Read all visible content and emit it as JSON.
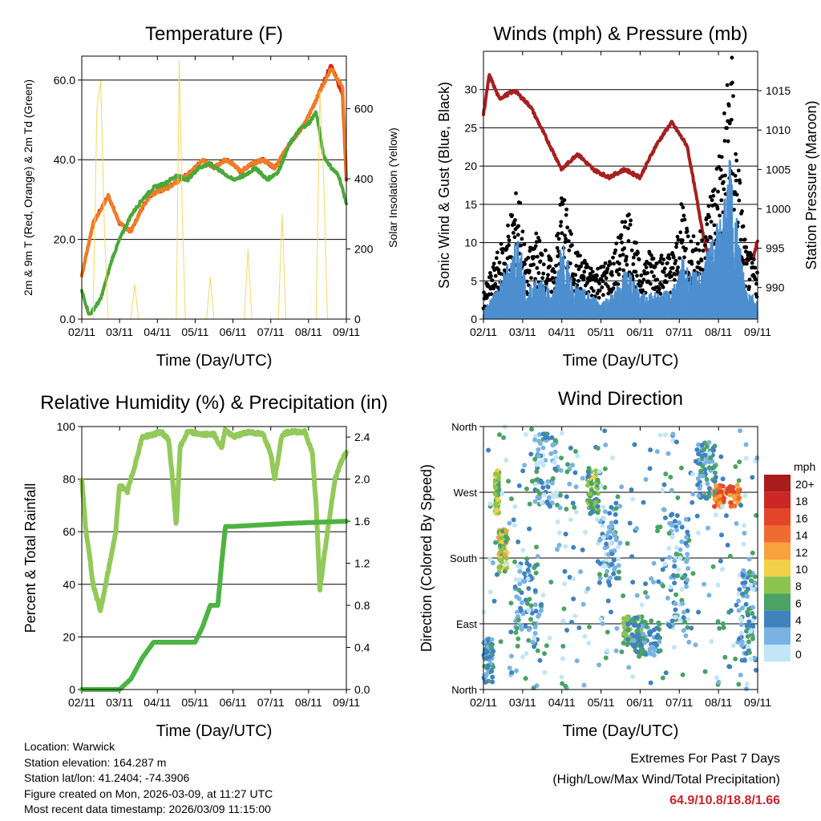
{
  "x_ticks": [
    "02/11",
    "03/11",
    "04/11",
    "05/11",
    "06/11",
    "07/11",
    "08/11",
    "09/11"
  ],
  "chart_data": [
    {
      "type": "line",
      "title": "Temperature (F)",
      "xlabel": "Time (Day/UTC)",
      "ylabel": "2m & 9m T (Red, Orange) & 2m Td (Green)",
      "y2label": "Solar Insolation (Yellow)",
      "ylim": [
        0,
        66
      ],
      "y2lim": [
        0,
        750
      ],
      "yticks": [
        "0.0",
        "20.0",
        "40.0",
        "60.0"
      ],
      "y2ticks": [
        "0",
        "200",
        "400",
        "600"
      ],
      "series": [
        {
          "name": "2m T",
          "color": "#d42a24",
          "x": [
            0,
            0.3,
            0.7,
            1.0,
            1.3,
            1.6,
            1.8,
            2.0,
            2.3,
            2.6,
            2.9,
            3.2,
            3.5,
            3.8,
            4.0,
            4.2,
            4.5,
            4.8,
            5.1,
            5.5,
            5.9,
            6.2,
            6.6,
            6.9,
            7.0
          ],
          "values": [
            11,
            24,
            31,
            24,
            22,
            28,
            31,
            32,
            33,
            35,
            37,
            40,
            38,
            40,
            39,
            37,
            39,
            40,
            38,
            44,
            49,
            55,
            64,
            56,
            35
          ]
        },
        {
          "name": "9m T",
          "color": "#f07d24",
          "x": [
            0,
            0.3,
            0.7,
            1.0,
            1.3,
            1.6,
            1.8,
            2.0,
            2.3,
            2.6,
            2.9,
            3.2,
            3.5,
            3.8,
            4.0,
            4.2,
            4.5,
            4.8,
            5.1,
            5.5,
            5.9,
            6.2,
            6.6,
            6.9,
            7.0
          ],
          "values": [
            11,
            24,
            31,
            24,
            22,
            28,
            31,
            32,
            33,
            35,
            37,
            40,
            38,
            40,
            39,
            37,
            39,
            40,
            38,
            44,
            49,
            55,
            63,
            58,
            36
          ]
        },
        {
          "name": "2m Td",
          "color": "#4aa83a",
          "x": [
            0,
            0.2,
            0.5,
            0.8,
            1.0,
            1.3,
            1.6,
            1.9,
            2.2,
            2.5,
            2.8,
            3.1,
            3.4,
            3.7,
            4.0,
            4.3,
            4.6,
            4.9,
            5.2,
            5.5,
            5.8,
            6.0,
            6.2,
            6.4,
            6.6,
            6.8,
            7.0
          ],
          "values": [
            7,
            1,
            5,
            15,
            20,
            26,
            30,
            33,
            34,
            36,
            35,
            38,
            39,
            37,
            35,
            36,
            38,
            35,
            37,
            44,
            48,
            49,
            52,
            41,
            38,
            36,
            29
          ]
        },
        {
          "name": "Solar Insolation",
          "color": "#f5d85e",
          "axis": "y2",
          "x": [
            0.3,
            0.4,
            0.5,
            0.6,
            0.7,
            0.8,
            1.3,
            1.4,
            1.5,
            2.5,
            2.58,
            2.66,
            2.74,
            3.3,
            3.4,
            3.5,
            4.3,
            4.4,
            4.5,
            5.2,
            5.3,
            5.4,
            6.2,
            6.3,
            6.4,
            6.5
          ],
          "values": [
            0,
            600,
            680,
            250,
            0,
            0,
            0,
            100,
            0,
            0,
            740,
            300,
            0,
            0,
            120,
            0,
            0,
            200,
            0,
            0,
            300,
            0,
            0,
            650,
            400,
            0
          ]
        }
      ]
    },
    {
      "type": "line",
      "title": "Winds (mph) & Pressure (mb)",
      "xlabel": "Time (Day/UTC)",
      "ylabel": "Sonic Wind & Gust (Blue, Black)",
      "y2label": "Station Pressure (Maroon)",
      "ylim": [
        0,
        35
      ],
      "y2lim": [
        986,
        1020
      ],
      "yticks": [
        "0",
        "5",
        "10",
        "15",
        "20",
        "25",
        "30"
      ],
      "y2ticks": [
        "990",
        "995",
        "1000",
        "1005",
        "1010",
        "1015"
      ],
      "series": [
        {
          "name": "Station Pressure",
          "color": "#a52020",
          "axis": "y2",
          "x": [
            0,
            0.15,
            0.4,
            0.8,
            1.2,
            1.6,
            2.0,
            2.4,
            2.8,
            3.2,
            3.6,
            4.0,
            4.4,
            4.8,
            5.2,
            5.6,
            6.0,
            6.3,
            6.6,
            6.9,
            7.0
          ],
          "values": [
            1012,
            1017,
            1014,
            1015,
            1013,
            1009,
            1005,
            1007,
            1005,
            1004,
            1005,
            1004,
            1008,
            1011,
            1008,
            997,
            988,
            989,
            993,
            994,
            996
          ]
        },
        {
          "name": "Wind Gust",
          "color": "#000000",
          "x": [
            0,
            0.5,
            0.9,
            1.1,
            1.3,
            1.8,
            2.0,
            2.3,
            2.7,
            3.0,
            3.3,
            3.7,
            4.0,
            4.3,
            4.6,
            4.9,
            5.1,
            5.3,
            5.6,
            5.9,
            6.1,
            6.3,
            6.5,
            6.7,
            7.0
          ],
          "values": [
            3,
            9,
            15,
            6,
            10,
            6,
            15,
            8,
            6,
            6,
            7,
            13,
            6,
            8,
            7,
            8,
            14,
            9,
            10,
            17,
            20,
            32,
            18,
            8,
            6
          ]
        },
        {
          "name": "Sonic Wind",
          "color": "#4d8fcf",
          "x": [
            0,
            0.5,
            0.9,
            1.1,
            1.3,
            1.8,
            2.0,
            2.3,
            2.7,
            3.0,
            3.3,
            3.7,
            4.0,
            4.3,
            4.6,
            4.9,
            5.1,
            5.3,
            5.6,
            5.9,
            6.1,
            6.3,
            6.5,
            6.7,
            7.0
          ],
          "values": [
            1,
            5,
            10,
            3,
            5,
            3,
            9,
            4,
            3,
            2,
            3,
            6,
            3,
            3,
            3,
            4,
            7,
            5,
            6,
            10,
            12,
            18,
            10,
            4,
            2
          ]
        }
      ]
    },
    {
      "type": "line",
      "title": "Relative Humidity (%) & Precipitation (in)",
      "xlabel": "Time (Day/UTC)",
      "ylabel": "Percent & Total Rainfall",
      "ylim": [
        0,
        100
      ],
      "y2lim": [
        0,
        2.5
      ],
      "yticks": [
        "0",
        "20",
        "40",
        "60",
        "80",
        "100"
      ],
      "y2ticks": [
        "0.0",
        "0.4",
        "0.8",
        "1.2",
        "1.6",
        "2.0",
        "2.4"
      ],
      "series": [
        {
          "name": "Relative Humidity",
          "color": "#93c95a",
          "x": [
            0,
            0.1,
            0.3,
            0.5,
            0.7,
            0.9,
            1.0,
            1.2,
            1.4,
            1.6,
            1.9,
            2.1,
            2.3,
            2.4,
            2.5,
            2.6,
            2.8,
            3.2,
            3.5,
            3.7,
            3.8,
            4.0,
            4.4,
            4.8,
            5.0,
            5.1,
            5.3,
            5.5,
            5.9,
            6.1,
            6.2,
            6.3,
            6.5,
            6.7,
            6.9,
            7.0
          ],
          "values": [
            80,
            62,
            40,
            30,
            45,
            60,
            78,
            75,
            85,
            96,
            97,
            98,
            95,
            80,
            62,
            92,
            98,
            97,
            97,
            92,
            99,
            96,
            98,
            97,
            90,
            80,
            97,
            98,
            98,
            90,
            70,
            38,
            60,
            80,
            88,
            90
          ]
        },
        {
          "name": "Total Precipitation",
          "color": "#4db343",
          "axis": "y2",
          "x": [
            0,
            1.0,
            1.3,
            1.6,
            1.9,
            2.8,
            3.0,
            3.2,
            3.4,
            3.6,
            3.7,
            3.8,
            4.0,
            4.5,
            5.5,
            7.0
          ],
          "values": [
            0,
            0,
            0.1,
            0.3,
            0.45,
            0.45,
            0.45,
            0.6,
            0.8,
            0.8,
            1.2,
            1.55,
            1.55,
            1.56,
            1.58,
            1.6
          ]
        }
      ]
    },
    {
      "type": "scatter",
      "title": "Wind Direction",
      "xlabel": "Time (Day/UTC)",
      "ylabel": "Direction (Colored By Speed)",
      "yticks": [
        "North",
        "East",
        "South",
        "West",
        "North"
      ],
      "colorbar_title": "mph",
      "colorbar_labels": [
        "20+",
        "18",
        "16",
        "14",
        "12",
        "10",
        "8",
        "6",
        "4",
        "2",
        "0"
      ],
      "colorbar_colors": [
        "#a81c1c",
        "#cc2626",
        "#e3452a",
        "#f06b2f",
        "#f7a23d",
        "#f2d049",
        "#8bc44e",
        "#4aa365",
        "#3f82be",
        "#7ab3e2",
        "#c2e5f8"
      ],
      "clusters": [
        {
          "x": 0.1,
          "dir": 40,
          "spread": [
            0.15,
            30
          ],
          "speed": 4
        },
        {
          "x": 0.35,
          "dir": 270,
          "spread": [
            0.05,
            30
          ],
          "speed": 8
        },
        {
          "x": 0.5,
          "dir": 190,
          "spread": [
            0.12,
            30
          ],
          "speed": 9
        },
        {
          "x": 1.1,
          "dir": 120,
          "spread": [
            0.3,
            60
          ],
          "speed": 3
        },
        {
          "x": 1.6,
          "dir": 300,
          "spread": [
            0.3,
            50
          ],
          "speed": 3
        },
        {
          "x": 2.8,
          "dir": 270,
          "spread": [
            0.15,
            30
          ],
          "speed": 7
        },
        {
          "x": 3.2,
          "dir": 200,
          "spread": [
            0.3,
            60
          ],
          "speed": 3
        },
        {
          "x": 3.8,
          "dir": 80,
          "spread": [
            0.25,
            20
          ],
          "speed": 6
        },
        {
          "x": 4.2,
          "dir": 70,
          "spread": [
            0.35,
            25
          ],
          "speed": 4
        },
        {
          "x": 5.0,
          "dir": 160,
          "spread": [
            0.25,
            80
          ],
          "speed": 3
        },
        {
          "x": 5.7,
          "dir": 300,
          "spread": [
            0.25,
            40
          ],
          "speed": 4
        },
        {
          "x": 6.2,
          "dir": 265,
          "spread": [
            0.35,
            15
          ],
          "speed": 14
        },
        {
          "x": 6.7,
          "dir": 100,
          "spread": [
            0.25,
            60
          ],
          "speed": 3
        }
      ]
    }
  ],
  "info": {
    "location": "Location: Warwick",
    "elevation": "Station elevation: 164.287 m",
    "latlon": "Station lat/lon: 41.2404; -74.3906",
    "created": "Figure created on Mon, 2026-03-09, at 11:27 UTC",
    "recent": "Most recent data timestamp: 2026/03/09 11:15:00"
  },
  "extremes": {
    "line1": "Extremes For Past 7 Days",
    "line2": "(High/Low/Max Wind/Total Precipitation)",
    "values": "64.9/10.8/18.8/1.66"
  }
}
